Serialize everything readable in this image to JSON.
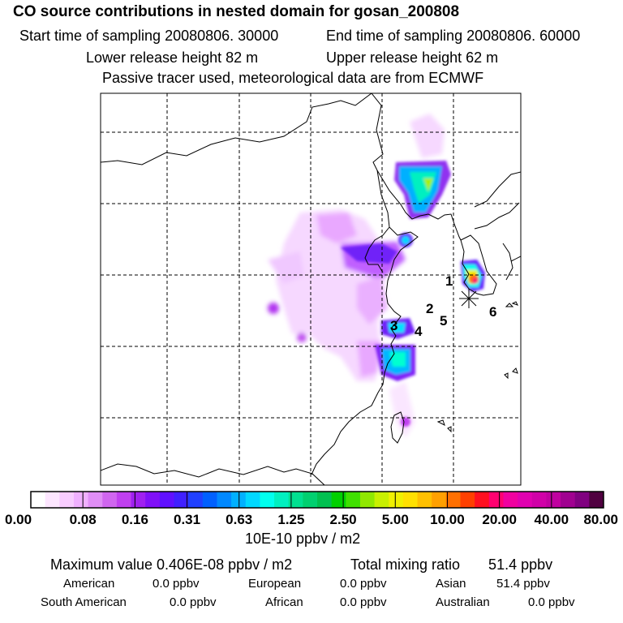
{
  "title": "CO  source contributions in nested domain for gosan_200808",
  "sampling": {
    "start": "Start time of sampling 20080806. 30000",
    "end": "End time of sampling 20080806. 60000"
  },
  "release": {
    "lower": "Lower release height   82 m",
    "upper": "Upper release height   62 m"
  },
  "tracer_note": "Passive tracer used, meteorological data are from ECMWF",
  "map_labels": [
    "1",
    "2",
    "3",
    "4",
    "5",
    "6"
  ],
  "chart_data": {
    "type": "heatmap",
    "title": "CO  source contributions in nested domain for gosan_200808",
    "colorbar_ticks": [
      "0.00",
      "0.08",
      "0.16",
      "0.31",
      "0.63",
      "1.25",
      "2.50",
      "5.00",
      "10.00",
      "20.00",
      "40.00",
      "80.00"
    ],
    "colorbar_unit": "10E-10 ppbv / m2",
    "colorbar_colors": [
      "#ffffff",
      "#fde6ff",
      "#f8ccff",
      "#f0b0ff",
      "#e08ef6",
      "#d066f0",
      "#c040f0",
      "#a020f0",
      "#8010f8",
      "#6010ff",
      "#4020ff",
      "#2040ff",
      "#0060ff",
      "#0088ff",
      "#00b0ff",
      "#00d8ff",
      "#00ffee",
      "#00f0c0",
      "#00e090",
      "#00d070",
      "#00c050",
      "#00d000",
      "#40e000",
      "#90e800",
      "#c8f000",
      "#f0f000",
      "#ffe000",
      "#ffc000",
      "#ffa000",
      "#ff7000",
      "#ff4000",
      "#ff1020",
      "#ff0070",
      "#f000a0",
      "#e000b0",
      "#d000a8",
      "#c000a0",
      "#a00090",
      "#800080",
      "#500040"
    ],
    "grid": true,
    "maximum": "Maximum value  0.406E-08 ppbv / m2",
    "total": "Total mixing ratio       51.4 ppbv",
    "regions": [
      {
        "name": "American",
        "value": "0.0 ppbv"
      },
      {
        "name": "European",
        "value": "0.0 ppbv"
      },
      {
        "name": "Asian",
        "value": "51.4 ppbv"
      },
      {
        "name": "South American",
        "value": "0.0 ppbv"
      },
      {
        "name": "African",
        "value": "0.0 ppbv"
      },
      {
        "name": "Australian",
        "value": "0.0 ppbv"
      }
    ]
  }
}
